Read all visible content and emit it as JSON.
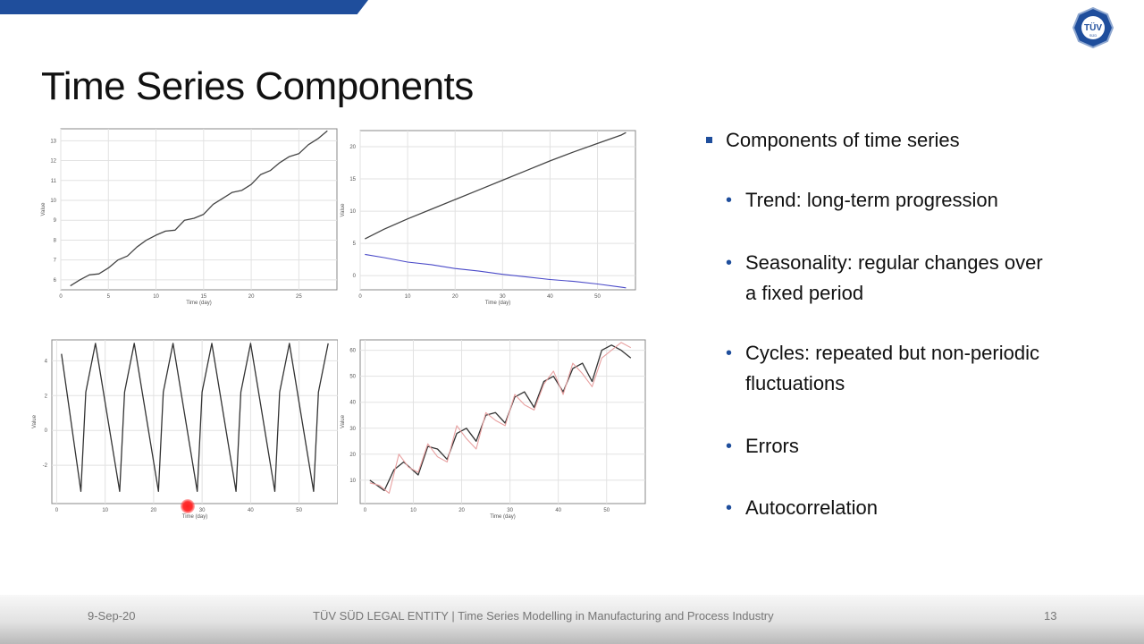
{
  "slide": {
    "title": "Time Series Components",
    "accent_color": "#1f4e9c",
    "logo_text": "TÜV",
    "logo_subtext": "SÜD"
  },
  "bullets": {
    "main": "Components of time series",
    "items": [
      {
        "line1": "Trend: long-term progression",
        "line2": ""
      },
      {
        "line1": "Seasonality: regular changes over",
        "line2": "a fixed period"
      },
      {
        "line1": "Cycles: repeated but non-periodic",
        "line2": "fluctuations"
      },
      {
        "line1": "Errors",
        "line2": ""
      },
      {
        "line1": "Autocorrelation",
        "line2": ""
      }
    ]
  },
  "footer": {
    "date": "9-Sep-20",
    "center": "TÜV SÜD LEGAL ENTITY | Time Series Modelling in Manufacturing and Process Industry",
    "page": "13"
  },
  "chart_data": [
    {
      "type": "line",
      "xlabel": "Time (day)",
      "ylabel": "Value",
      "xlim": [
        0,
        29
      ],
      "ylim": [
        5.5,
        13.6
      ],
      "xticks": [
        0,
        5,
        10,
        15,
        20,
        25
      ],
      "yticks": [
        6,
        7,
        8,
        9,
        10,
        11,
        12,
        13
      ],
      "grid": true,
      "series": [
        {
          "color": "#444444",
          "x": [
            1,
            2,
            3,
            4,
            5,
            6,
            7,
            8,
            9,
            10,
            11,
            12,
            13,
            14,
            15,
            16,
            17,
            18,
            19,
            20,
            21,
            22,
            23,
            24,
            25,
            26,
            27,
            28
          ],
          "values": [
            5.7,
            6.0,
            6.25,
            6.3,
            6.6,
            7.0,
            7.2,
            7.65,
            8.0,
            8.25,
            8.45,
            8.5,
            9.0,
            9.1,
            9.3,
            9.8,
            10.1,
            10.4,
            10.5,
            10.8,
            11.3,
            11.5,
            11.9,
            12.2,
            12.35,
            12.8,
            13.1,
            13.5
          ]
        }
      ]
    },
    {
      "type": "line",
      "xlabel": "Time (day)",
      "ylabel": "Value",
      "xlim": [
        0,
        58
      ],
      "ylim": [
        -2.2,
        22.5
      ],
      "xticks": [
        0,
        10,
        20,
        30,
        40,
        50
      ],
      "yticks": [
        0,
        5,
        10,
        15,
        20
      ],
      "grid": true,
      "series": [
        {
          "color": "#444444",
          "x": [
            1,
            5,
            10,
            15,
            20,
            25,
            30,
            35,
            40,
            45,
            50,
            55,
            56
          ],
          "values": [
            5.7,
            7.2,
            8.8,
            10.3,
            11.8,
            13.3,
            14.8,
            16.3,
            17.8,
            19.2,
            20.5,
            21.8,
            22.2
          ]
        },
        {
          "color": "#4a4ac8",
          "x": [
            1,
            5,
            10,
            15,
            20,
            25,
            30,
            35,
            40,
            45,
            50,
            55,
            56
          ],
          "values": [
            3.3,
            2.8,
            2.1,
            1.7,
            1.1,
            0.7,
            0.2,
            -0.2,
            -0.6,
            -0.9,
            -1.3,
            -1.8,
            -1.9
          ]
        }
      ]
    },
    {
      "type": "line",
      "xlabel": "Time (day)",
      "ylabel": "Value",
      "xlim": [
        -1,
        58
      ],
      "ylim": [
        -4.2,
        5.2
      ],
      "xticks": [
        0,
        10,
        20,
        30,
        40,
        50
      ],
      "yticks": [
        -2,
        0,
        2,
        4
      ],
      "grid": true,
      "series": [
        {
          "color": "#333333",
          "x": [
            1,
            5,
            6,
            8,
            13,
            14,
            16,
            21,
            22,
            24,
            29,
            30,
            32,
            37,
            38,
            40,
            45,
            46,
            48,
            53,
            54,
            56
          ],
          "values": [
            4.4,
            -3.5,
            2.2,
            5.0,
            -3.5,
            2.2,
            5.0,
            -3.5,
            2.2,
            5.0,
            -3.5,
            2.2,
            5.0,
            -3.5,
            2.2,
            5.0,
            -3.5,
            2.2,
            5.0,
            -3.5,
            2.2,
            5.0
          ]
        }
      ]
    },
    {
      "type": "line",
      "xlabel": "Time (day)",
      "ylabel": "Value",
      "xlim": [
        -1,
        58
      ],
      "ylim": [
        1,
        64
      ],
      "xticks": [
        0,
        10,
        20,
        30,
        40,
        50
      ],
      "yticks": [
        10,
        20,
        30,
        40,
        50,
        60
      ],
      "grid": true,
      "series": [
        {
          "color": "#333333",
          "x": [
            1,
            4,
            6,
            8,
            11,
            13,
            15,
            17,
            19,
            21,
            23,
            25,
            27,
            29,
            31,
            33,
            35,
            37,
            39,
            41,
            43,
            45,
            47,
            49,
            51,
            53,
            55
          ],
          "values": [
            10,
            6,
            14,
            17,
            12,
            23,
            22,
            18,
            28,
            30,
            25,
            35,
            36,
            32,
            42,
            44,
            38,
            48,
            50,
            44,
            53,
            55,
            48,
            60,
            62,
            60,
            57
          ]
        },
        {
          "color": "#e8a0a0",
          "x": [
            1,
            3,
            5,
            7,
            9,
            11,
            13,
            15,
            17,
            19,
            21,
            23,
            25,
            27,
            29,
            31,
            33,
            35,
            37,
            39,
            41,
            43,
            45,
            47,
            49,
            51,
            53,
            55
          ],
          "values": [
            9,
            8,
            5,
            20,
            15,
            13,
            24,
            19,
            17,
            31,
            26,
            22,
            36,
            33,
            31,
            43,
            39,
            37,
            47,
            52,
            43,
            55,
            51,
            46,
            57,
            60,
            63,
            61
          ]
        }
      ]
    }
  ]
}
